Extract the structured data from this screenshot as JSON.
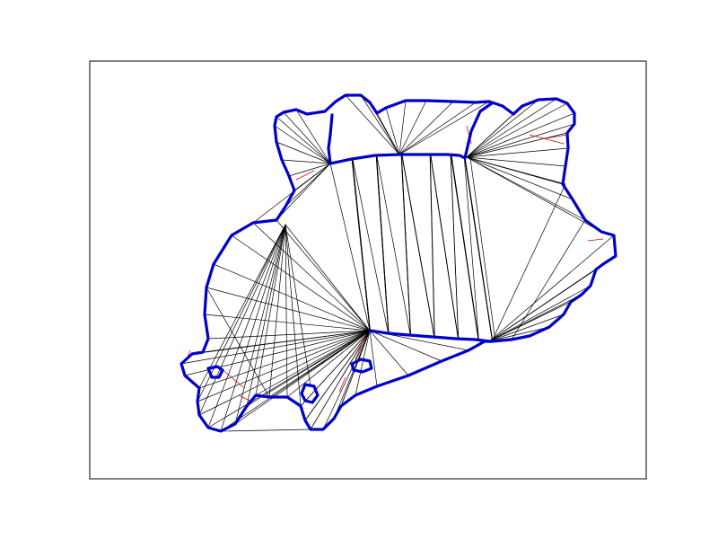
{
  "figure": {
    "background": "#ffffff",
    "frame_color": "#000000",
    "edge_color": "#000000",
    "constraint_edge_color": "#cc0000",
    "boundary_color": "#0000cc",
    "show_axis_ticks": false,
    "show_grid": false
  }
}
